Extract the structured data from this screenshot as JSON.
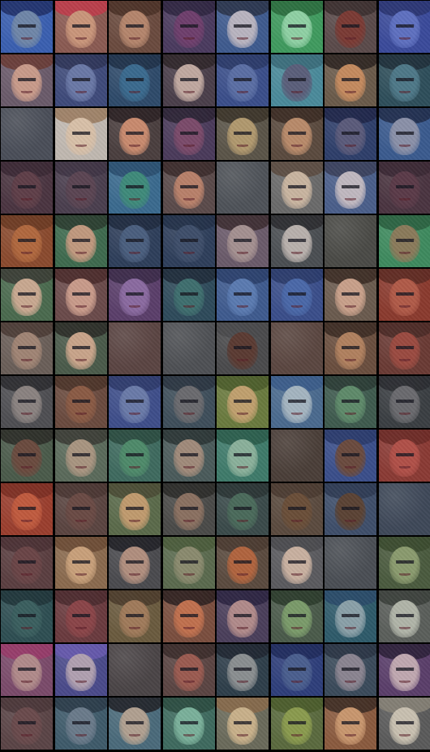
{
  "grid": {
    "rows": 14,
    "columns": 8,
    "tiles": [
      [
        {
          "bg": "#3a5fb0",
          "face": "#6f86a8",
          "hair": "#1e2e66"
        },
        {
          "bg": "#8a5a52",
          "face": "#c9957a",
          "hair": "#c23a4a"
        },
        {
          "bg": "#6a4a3e",
          "face": "#b4856c",
          "hair": "#4a3026"
        },
        {
          "bg": "#4a3a5e",
          "face": "#6e3e6c",
          "hair": "#2e2440"
        },
        {
          "bg": "#3e5a8e",
          "face": "#b9b4c0",
          "hair": "#2a3248"
        },
        {
          "bg": "#3f9a5e",
          "face": "#8fd0a4",
          "hair": "#2a6a3c"
        },
        {
          "bg": "#5a4a4a",
          "face": "#7a3a34",
          "hair": "#3a2e2e"
        },
        {
          "bg": "#3a4a9a",
          "face": "#5e70c0",
          "hair": "#2a3470"
        }
      ],
      [
        {
          "bg": "#6a5a6a",
          "face": "#c89a8a",
          "hair": "#6a3a32"
        },
        {
          "bg": "#3e4a7a",
          "face": "#6a78a6",
          "hair": "#2e3456"
        },
        {
          "bg": "#2e4a6a",
          "face": "#3a6a8e",
          "hair": "#1e3048"
        },
        {
          "bg": "#4a3e4a",
          "face": "#c0a8a0",
          "hair": "#2e2428"
        },
        {
          "bg": "#3a4e8a",
          "face": "#5a6ea4",
          "hair": "#2a3866"
        },
        {
          "bg": "#4a8a9a",
          "face": "#5a5e7a",
          "hair": "#3a6a78"
        },
        {
          "bg": "#6a5a4a",
          "face": "#c48a5e",
          "hair": "#2a221e"
        },
        {
          "bg": "#2e4e5a",
          "face": "#4e7888",
          "hair": "#1e2e38"
        }
      ],
      [
        {
          "bg": "#4a4e58",
          "face": "#4a4e58",
          "hair": "#4a4e58",
          "blank": true
        },
        {
          "bg": "#c0b8b0",
          "face": "#d8c0a8",
          "hair": "#9a7a5e"
        },
        {
          "bg": "#4a3e3e",
          "face": "#c88a6e",
          "hair": "#2a2022"
        },
        {
          "bg": "#4a3a5a",
          "face": "#7a4a6a",
          "hair": "#2a2232"
        },
        {
          "bg": "#5a5448",
          "face": "#b0986e",
          "hair": "#3a3228"
        },
        {
          "bg": "#5a4a3e",
          "face": "#b88a6a",
          "hair": "#3a2a22"
        },
        {
          "bg": "#2e3e6a",
          "face": "#5a5a7a",
          "hair": "#1e2448"
        },
        {
          "bg": "#3a5a8e",
          "face": "#8a90a8",
          "hair": "#1e2a48"
        }
      ],
      [
        {
          "bg": "#4a3440",
          "face": "#5e3e48",
          "hair": "#3a2834"
        },
        {
          "bg": "#4a3e4e",
          "face": "#5a4452",
          "hair": "#3e3444"
        },
        {
          "bg": "#3a6a8e",
          "face": "#3e8a7a",
          "hair": "#2a4e6e"
        },
        {
          "bg": "#5a4a4a",
          "face": "#b8806a",
          "hair": "#3a2a2a"
        },
        {
          "bg": "#4e5258",
          "face": "#4e5258",
          "hair": "#4e5258",
          "blank": true
        },
        {
          "bg": "#6a6a6a",
          "face": "#c8b4a0",
          "hair": "#5a4a3e"
        },
        {
          "bg": "#4a5e8a",
          "face": "#c0b8c0",
          "hair": "#3a3e58"
        },
        {
          "bg": "#4a3440",
          "face": "#5a3a48",
          "hair": "#3a2834"
        }
      ],
      [
        {
          "bg": "#8a4a2e",
          "face": "#b0683e",
          "hair": "#6a3a22"
        },
        {
          "bg": "#3e6a4e",
          "face": "#c0987e",
          "hair": "#2a3a2e"
        },
        {
          "bg": "#2e3e5a",
          "face": "#4a5e7e",
          "hair": "#1e2a3e"
        },
        {
          "bg": "#2e3e5a",
          "face": "#3e4e6a",
          "hair": "#223048"
        },
        {
          "bg": "#6a5a6a",
          "face": "#a49090",
          "hair": "#3a2a2e"
        },
        {
          "bg": "#4a4e52",
          "face": "#b8b0ac",
          "hair": "#2a2a2e"
        },
        {
          "bg": "#4a4a46",
          "face": "#4a4a46",
          "hair": "#4a4a46",
          "blank": true
        },
        {
          "bg": "#3e8a5e",
          "face": "#8a7a5a",
          "hair": "#2a5e3e"
        }
      ],
      [
        {
          "bg": "#4a6a4e",
          "face": "#c8a890",
          "hair": "#3a3a34"
        },
        {
          "bg": "#6a4a4a",
          "face": "#c89a8a",
          "hair": "#4a2a2a"
        },
        {
          "bg": "#5a3e6a",
          "face": "#8a6aa0",
          "hair": "#3a2a48"
        },
        {
          "bg": "#2e4a5a",
          "face": "#3e6e6e",
          "hair": "#1e2a38"
        },
        {
          "bg": "#3e5a8e",
          "face": "#5a7ab0",
          "hair": "#2a3e6a"
        },
        {
          "bg": "#3a4e8a",
          "face": "#4a68a8",
          "hair": "#2a3a68"
        },
        {
          "bg": "#6a5a4e",
          "face": "#c8a08a",
          "hair": "#3a2a22"
        },
        {
          "bg": "#8a3a2e",
          "face": "#b05a48",
          "hair": "#5a2a22"
        }
      ],
      [
        {
          "bg": "#6a5e58",
          "face": "#a08474",
          "hair": "#4a3a34"
        },
        {
          "bg": "#4a5a4a",
          "face": "#c8a48a",
          "hair": "#2a2a26"
        },
        {
          "bg": "#5a4442",
          "face": "#5a4442",
          "hair": "#5a4442",
          "blank": true
        },
        {
          "bg": "#4e5054",
          "face": "#4e5054",
          "hair": "#4e5054",
          "blank": true
        },
        {
          "bg": "#4a4a4c",
          "face": "#5a3a32",
          "hair": "#4a4a4c"
        },
        {
          "bg": "#5a4640",
          "face": "#5a4640",
          "hair": "#5a4640",
          "blank": true
        },
        {
          "bg": "#6a4e3e",
          "face": "#b0805e",
          "hair": "#3a2a22"
        },
        {
          "bg": "#6a3a34",
          "face": "#9a4a40",
          "hair": "#4a2a26"
        }
      ],
      [
        {
          "bg": "#4e4e52",
          "face": "#8a8280",
          "hair": "#2a2a2e"
        },
        {
          "bg": "#6a4a3e",
          "face": "#8a5a44",
          "hair": "#4a3228"
        },
        {
          "bg": "#3e4e8a",
          "face": "#6a7aa8",
          "hair": "#2e3a6a"
        },
        {
          "bg": "#3e4e5a",
          "face": "#6a6a6e",
          "hair": "#2a3440"
        },
        {
          "bg": "#6a7a3e",
          "face": "#c0a06e",
          "hair": "#4a5a2a"
        },
        {
          "bg": "#4a6a8e",
          "face": "#a4b4c0",
          "hair": "#3a5a8a"
        },
        {
          "bg": "#3e5a4e",
          "face": "#5e8a6a",
          "hair": "#2a3a34"
        },
        {
          "bg": "#3a3e42",
          "face": "#6a6a6e",
          "hair": "#2a2c30"
        }
      ],
      [
        {
          "bg": "#4a5a4a",
          "face": "#6a4a3e",
          "hair": "#2a2a26"
        },
        {
          "bg": "#5a6a5a",
          "face": "#a89480",
          "hair": "#3a3a34"
        },
        {
          "bg": "#3e6a5e",
          "face": "#4e8a6a",
          "hair": "#2a4a3e"
        },
        {
          "bg": "#4a5a5a",
          "face": "#a08a7a",
          "hair": "#2a3434"
        },
        {
          "bg": "#3e7a6a",
          "face": "#8ab09a",
          "hair": "#2a5a4a"
        },
        {
          "bg": "#4a3e38",
          "face": "#4a3e38",
          "hair": "#4a3e38",
          "blank": true
        },
        {
          "bg": "#3a4e8a",
          "face": "#6a4a3e",
          "hair": "#2a3a6a"
        },
        {
          "bg": "#8a3a34",
          "face": "#b05048",
          "hair": "#6a2a26"
        }
      ],
      [
        {
          "bg": "#9a3e2e",
          "face": "#c05a3e",
          "hair": "#7a2e22"
        },
        {
          "bg": "#5a4440",
          "face": "#6a4a44",
          "hair": "#4a3632"
        },
        {
          "bg": "#5a6a4a",
          "face": "#c09a6e",
          "hair": "#4a4a34"
        },
        {
          "bg": "#4a4a48",
          "face": "#8a7060",
          "hair": "#2a2a28"
        },
        {
          "bg": "#3a4a4a",
          "face": "#4a6a5a",
          "hair": "#2a3434"
        },
        {
          "bg": "#5a4a3e",
          "face": "#6a4e38",
          "hair": "#4a3a30"
        },
        {
          "bg": "#3e4e6a",
          "face": "#5a4234",
          "hair": "#2e3a52"
        },
        {
          "bg": "#3e4858",
          "face": "#3e4858",
          "hair": "#3e4858",
          "blank": true
        }
      ],
      [
        {
          "bg": "#5a3e40",
          "face": "#6a4446",
          "hair": "#4a3034"
        },
        {
          "bg": "#8a6a4e",
          "face": "#c8a07a",
          "hair": "#6a4a34"
        },
        {
          "bg": "#4a4a4e",
          "face": "#b08e7e",
          "hair": "#1e1e24"
        },
        {
          "bg": "#5a6a4e",
          "face": "#8a8a6e",
          "hair": "#4a5a3a"
        },
        {
          "bg": "#5a4a3e",
          "face": "#b0643e",
          "hair": "#4a3a30"
        },
        {
          "bg": "#5a5a5e",
          "face": "#c8b0a0",
          "hair": "#4a4a4e"
        },
        {
          "bg": "#4a4e54",
          "face": "#4a4e54",
          "hair": "#4a4e54",
          "blank": true
        },
        {
          "bg": "#4a5a3e",
          "face": "#8a9a6e",
          "hair": "#3a4a2e"
        }
      ],
      [
        {
          "bg": "#2e4e52",
          "face": "#3a5e5e",
          "hair": "#1e3438"
        },
        {
          "bg": "#6a3a3e",
          "face": "#8a4448",
          "hair": "#4a2a2e"
        },
        {
          "bg": "#6a5a3e",
          "face": "#a07a5a",
          "hair": "#4a3a2a"
        },
        {
          "bg": "#7a4e3e",
          "face": "#c0704e",
          "hair": "#2a1e1e"
        },
        {
          "bg": "#4a3e5a",
          "face": "#b08a8a",
          "hair": "#2a2240"
        },
        {
          "bg": "#4a5a4a",
          "face": "#7a9a6a",
          "hair": "#2a3a2a"
        },
        {
          "bg": "#2e5a6a",
          "face": "#8aa0a8",
          "hair": "#2a4a6a"
        },
        {
          "bg": "#5a5e5a",
          "face": "#b0b4a8",
          "hair": "#3a3e3a"
        }
      ],
      [
        {
          "bg": "#7a4a6a",
          "face": "#b08a8a",
          "hair": "#9a3a6a"
        },
        {
          "bg": "#4a4a8a",
          "face": "#b0a0b0",
          "hair": "#6a5ab0"
        },
        {
          "bg": "#4a4446",
          "face": "#4a4446",
          "hair": "#4a4446",
          "blank": true
        },
        {
          "bg": "#5a4442",
          "face": "#9a5a50",
          "hair": "#3a2c2a"
        },
        {
          "bg": "#2e3e4a",
          "face": "#8a8e90",
          "hair": "#1e2430"
        },
        {
          "bg": "#2e3e7a",
          "face": "#4a5e8e",
          "hair": "#1e2a5a"
        },
        {
          "bg": "#3a4a5a",
          "face": "#8a8490",
          "hair": "#2a3444"
        },
        {
          "bg": "#5a3e6a",
          "face": "#c0a8b0",
          "hair": "#2a1e36"
        }
      ],
      [
        {
          "bg": "#5a4446",
          "face": "#6a4a4c",
          "hair": "#4a3638"
        },
        {
          "bg": "#3e5a6a",
          "face": "#6a7a8a",
          "hair": "#2a3a48"
        },
        {
          "bg": "#4a6a7a",
          "face": "#b0a090",
          "hair": "#1e1e24"
        },
        {
          "bg": "#3e6a5e",
          "face": "#7ab09a",
          "hair": "#2a4a3e"
        },
        {
          "bg": "#6a6a5a",
          "face": "#c8b08a",
          "hair": "#8a6a4a"
        },
        {
          "bg": "#5a6a3e",
          "face": "#8a9a4e",
          "hair": "#4a5a2a"
        },
        {
          "bg": "#8a5a3e",
          "face": "#c8966e",
          "hair": "#3a2a22"
        },
        {
          "bg": "#5a5a5a",
          "face": "#c8c0b0",
          "hair": "#8a8478"
        }
      ]
    ]
  }
}
